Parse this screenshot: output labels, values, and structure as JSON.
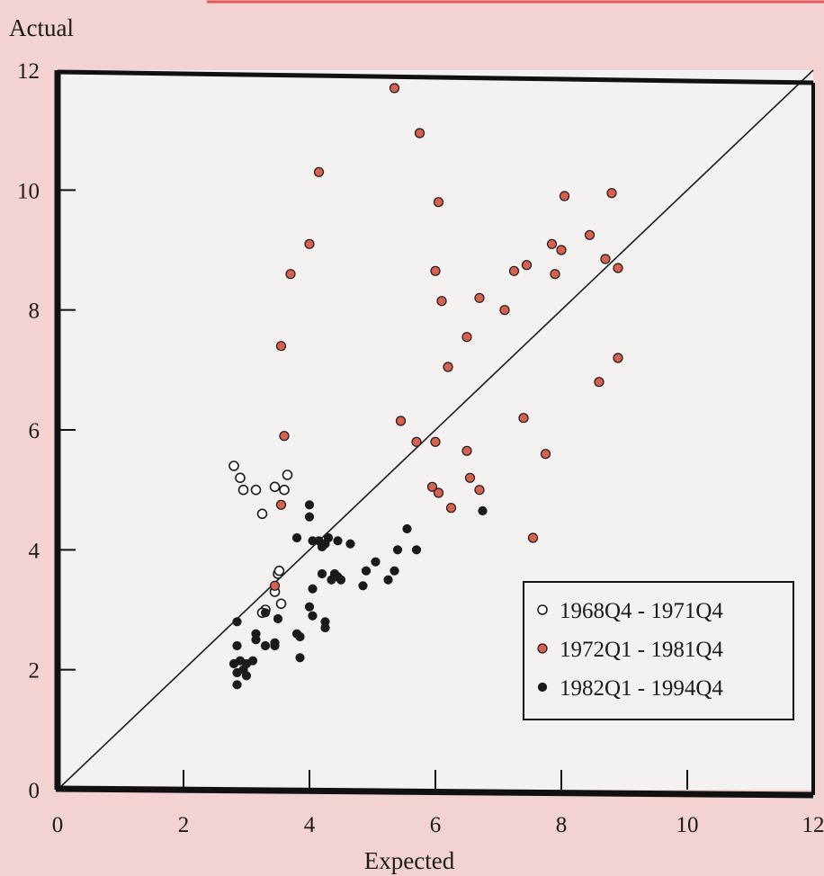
{
  "chart_data": {
    "type": "scatter",
    "title": "",
    "xlabel": "Expected",
    "ylabel": "Actual",
    "xlim": [
      0,
      12
    ],
    "ylim": [
      0,
      12
    ],
    "xticks": [
      "0",
      "2",
      "4",
      "6",
      "8",
      "10",
      "12"
    ],
    "yticks": [
      "0",
      "2",
      "4",
      "6",
      "8",
      "10",
      "12"
    ],
    "grid": false,
    "legend_position": "bottom-right",
    "reference_line": {
      "label": "45-degree line",
      "from": [
        0,
        0
      ],
      "to": [
        12,
        12
      ]
    },
    "colors": {
      "background": "#f3d2d2",
      "plot_area": "#f4f1f1",
      "red": "#d9604f",
      "black": "#1a1a1a"
    },
    "series": [
      {
        "name": "1968Q4 - 1971Q4",
        "marker": "open-circle",
        "points": [
          [
            2.8,
            5.4
          ],
          [
            2.9,
            5.2
          ],
          [
            2.95,
            5.0
          ],
          [
            3.15,
            5.0
          ],
          [
            3.25,
            4.6
          ],
          [
            3.45,
            5.05
          ],
          [
            3.6,
            5.0
          ],
          [
            3.65,
            5.25
          ],
          [
            3.45,
            3.3
          ],
          [
            3.5,
            3.6
          ],
          [
            3.52,
            3.65
          ],
          [
            3.55,
            3.1
          ],
          [
            3.3,
            3.0
          ],
          [
            3.25,
            2.95
          ]
        ]
      },
      {
        "name": "1972Q1 - 1981Q4",
        "marker": "red-circle",
        "points": [
          [
            5.35,
            11.7
          ],
          [
            5.75,
            10.95
          ],
          [
            4.15,
            10.3
          ],
          [
            6.05,
            9.8
          ],
          [
            4.0,
            9.1
          ],
          [
            3.7,
            8.6
          ],
          [
            6.0,
            8.65
          ],
          [
            6.1,
            8.15
          ],
          [
            6.7,
            8.2
          ],
          [
            7.1,
            8.0
          ],
          [
            7.25,
            8.65
          ],
          [
            7.45,
            8.75
          ],
          [
            7.85,
            9.1
          ],
          [
            8.05,
            9.9
          ],
          [
            7.9,
            8.6
          ],
          [
            8.0,
            9.0
          ],
          [
            8.45,
            9.25
          ],
          [
            8.8,
            9.95
          ],
          [
            8.7,
            8.85
          ],
          [
            8.9,
            8.7
          ],
          [
            6.5,
            7.55
          ],
          [
            6.2,
            7.05
          ],
          [
            3.55,
            7.4
          ],
          [
            8.9,
            7.2
          ],
          [
            8.6,
            6.8
          ],
          [
            5.45,
            6.15
          ],
          [
            3.6,
            5.9
          ],
          [
            5.7,
            5.8
          ],
          [
            6.0,
            5.8
          ],
          [
            6.5,
            5.65
          ],
          [
            7.4,
            6.2
          ],
          [
            7.75,
            5.6
          ],
          [
            6.55,
            5.2
          ],
          [
            5.95,
            5.05
          ],
          [
            6.05,
            4.95
          ],
          [
            6.7,
            5.0
          ],
          [
            6.25,
            4.7
          ],
          [
            3.55,
            4.75
          ],
          [
            7.55,
            4.2
          ],
          [
            3.45,
            3.4
          ]
        ]
      },
      {
        "name": "1982Q1 - 1994Q4",
        "marker": "filled-circle",
        "points": [
          [
            4.0,
            4.75
          ],
          [
            4.0,
            4.55
          ],
          [
            4.05,
            4.15
          ],
          [
            4.15,
            4.15
          ],
          [
            4.2,
            4.05
          ],
          [
            4.25,
            4.1
          ],
          [
            4.3,
            4.2
          ],
          [
            4.45,
            4.15
          ],
          [
            4.65,
            4.1
          ],
          [
            3.8,
            4.2
          ],
          [
            5.55,
            4.35
          ],
          [
            5.4,
            4.0
          ],
          [
            5.7,
            4.0
          ],
          [
            6.75,
            4.65
          ],
          [
            4.2,
            3.6
          ],
          [
            4.4,
            3.6
          ],
          [
            4.45,
            3.55
          ],
          [
            4.5,
            3.5
          ],
          [
            4.35,
            3.5
          ],
          [
            4.05,
            3.35
          ],
          [
            4.9,
            3.65
          ],
          [
            5.05,
            3.8
          ],
          [
            5.25,
            3.5
          ],
          [
            5.35,
            3.65
          ],
          [
            4.85,
            3.4
          ],
          [
            4.0,
            3.05
          ],
          [
            4.05,
            2.9
          ],
          [
            4.25,
            2.8
          ],
          [
            4.25,
            2.7
          ],
          [
            3.8,
            2.6
          ],
          [
            3.85,
            2.55
          ],
          [
            3.85,
            2.2
          ],
          [
            3.5,
            2.85
          ],
          [
            3.3,
            2.95
          ],
          [
            3.15,
            2.6
          ],
          [
            3.15,
            2.5
          ],
          [
            3.3,
            2.4
          ],
          [
            3.45,
            2.45
          ],
          [
            3.45,
            2.4
          ],
          [
            2.85,
            2.8
          ],
          [
            2.85,
            2.4
          ],
          [
            2.8,
            2.1
          ],
          [
            2.9,
            2.15
          ],
          [
            3.0,
            2.1
          ],
          [
            3.1,
            2.15
          ],
          [
            2.95,
            2.0
          ],
          [
            2.85,
            1.95
          ],
          [
            3.0,
            1.9
          ],
          [
            2.85,
            1.75
          ]
        ]
      }
    ]
  }
}
